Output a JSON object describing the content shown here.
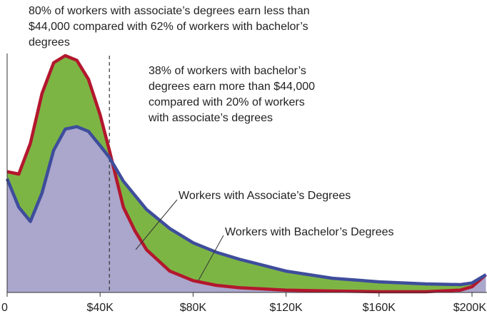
{
  "chart_data": {
    "type": "area",
    "x": [
      0,
      5000,
      10000,
      15000,
      20000,
      25000,
      30000,
      35000,
      40000,
      44000,
      50000,
      55000,
      60000,
      70000,
      80000,
      90000,
      100000,
      120000,
      140000,
      160000,
      180000,
      195000,
      200000,
      206000
    ],
    "series": [
      {
        "name": "Workers with Associate’s Degrees",
        "color": "#b3172d",
        "values": [
          51,
          50,
          63,
          84,
          97,
          100,
          98,
          90,
          75,
          60,
          36,
          26,
          18,
          9,
          5,
          3,
          2,
          1,
          0.6,
          0.3,
          0.3,
          1,
          2.4,
          7.5
        ]
      },
      {
        "name": "Workers with Bachelor’s Degrees",
        "color": "#3e4d9c",
        "values": [
          48,
          36,
          30,
          42,
          60,
          69,
          70,
          68,
          62,
          57,
          47,
          41,
          35,
          27,
          21,
          17,
          14,
          9,
          6,
          4.5,
          3.6,
          3.3,
          4,
          7.5
        ]
      }
    ],
    "xlim": [
      0,
      206000
    ],
    "ylim": [
      0,
      100
    ],
    "xticks": [
      0,
      {
        "value": 40000,
        "label": "$40K"
      },
      {
        "value": 80000,
        "label": "$80K"
      },
      {
        "value": 120000,
        "label": "$120K"
      },
      {
        "value": 160000,
        "label": "$160K"
      },
      {
        "value": 200000,
        "label": "$200K"
      }
    ],
    "marker_x": 44000,
    "area_color": "#7db545",
    "overlap_color": "#aaa6cc",
    "annotations": [
      {
        "lines": [
          "80% of workers with associate’s degrees earn less than",
          "$44,000 compared with 62% of workers with bachelor’s",
          "degrees"
        ]
      },
      {
        "lines": [
          "38% of workers with bachelor’s",
          "degrees earn more than $44,000",
          "compared with 20% of workers",
          "with associate’s degrees"
        ]
      }
    ]
  }
}
